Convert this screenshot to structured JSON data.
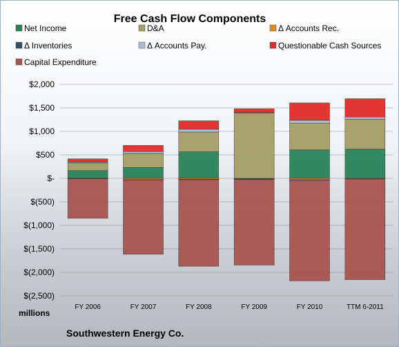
{
  "chart_data": {
    "type": "bar",
    "stacked": true,
    "title": "Free Cash Flow Components",
    "units_label": "millions",
    "company": "Southwestern Energy Co.",
    "categories": [
      "FY 2006",
      "FY 2007",
      "FY 2008",
      "FY 2009",
      "FY 2010",
      "TTM 6-2011"
    ],
    "ylim": [
      -2500,
      2000
    ],
    "yticks": [
      {
        "value": 2000,
        "label": "$2,000"
      },
      {
        "value": 1500,
        "label": "$1,500"
      },
      {
        "value": 1000,
        "label": "$1,000"
      },
      {
        "value": 500,
        "label": "$500"
      },
      {
        "value": 0,
        "label": "$-"
      },
      {
        "value": -500,
        "label": "$(500)"
      },
      {
        "value": -1000,
        "label": "$(1,000)"
      },
      {
        "value": -1500,
        "label": "$(1,500)"
      },
      {
        "value": -2000,
        "label": "$(2,000)"
      },
      {
        "value": -2500,
        "label": "$(2,500)"
      }
    ],
    "legend_placement": "top",
    "series": [
      {
        "name": "Net Income",
        "color": "#27845a",
        "values": [
          165,
          230,
          565,
          -15,
          605,
          620
        ]
      },
      {
        "name": "D&A",
        "color": "#a39e64",
        "values": [
          160,
          300,
          420,
          1390,
          570,
          640
        ]
      },
      {
        "name": "Δ Accounts Rec.",
        "color": "#e08c1c",
        "values": [
          -5,
          -25,
          -20,
          -5,
          -30,
          -10
        ]
      },
      {
        "name": "Δ Inventories",
        "color": "#2f4f6e",
        "values": [
          -5,
          -10,
          -10,
          -5,
          -10,
          -5
        ]
      },
      {
        "name": "Δ Accounts Pay.",
        "color": "#a9bcd6",
        "values": [
          20,
          40,
          60,
          10,
          60,
          45
        ]
      },
      {
        "name": "Questionable Cash Sources",
        "color": "#e32a2a",
        "values": [
          70,
          130,
          180,
          80,
          370,
          390
        ]
      },
      {
        "name": "Capital Expenditure",
        "color": "#a85450",
        "values": [
          -840,
          -1580,
          -1840,
          -1820,
          -2140,
          -2140
        ]
      }
    ]
  }
}
